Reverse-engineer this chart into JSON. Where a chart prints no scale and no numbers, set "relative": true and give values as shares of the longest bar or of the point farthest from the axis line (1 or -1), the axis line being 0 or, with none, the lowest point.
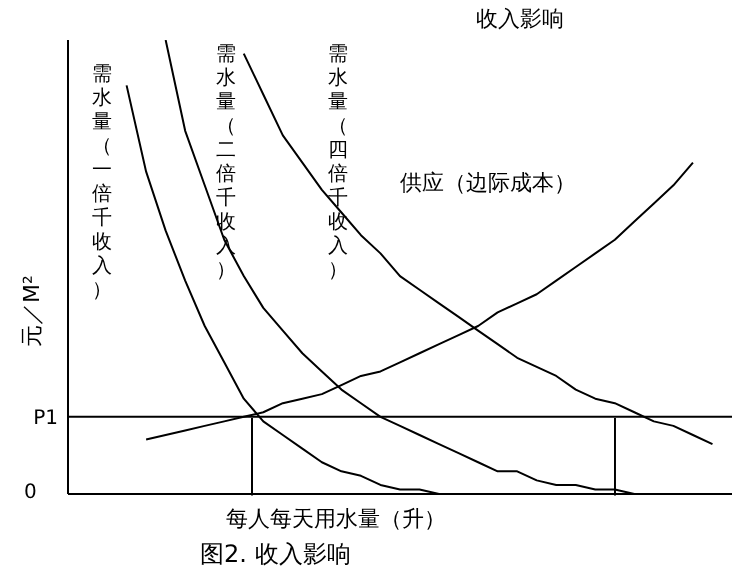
{
  "chart_data": {
    "type": "line",
    "title": "收入影响",
    "xlabel": "每人每天用水量（升）",
    "ylabel": "元／M²",
    "relative": true,
    "legend": false,
    "grid": false,
    "marker": "none",
    "line_style": "solid",
    "categories": [
      null,
      null,
      null,
      null,
      null,
      null,
      null,
      null,
      null,
      null,
      null,
      null,
      null,
      null,
      null,
      null,
      null,
      null,
      null,
      null,
      null,
      null,
      null,
      null,
      null,
      null,
      null,
      null,
      null,
      null,
      null,
      null,
      null,
      null,
      null
    ],
    "ref_lines": [
      {
        "axis": "y",
        "value": 0.17,
        "label": "P1",
        "color": "#000000"
      }
    ],
    "annotations": [
      "0",
      "图2. 收入影响"
    ],
    "series": [
      {
        "name": "需水量（一倍千收入）",
        "color": "#000000",
        "values": [
          null,
          null,
          null,
          0.9,
          0.71,
          0.58,
          0.47,
          0.37,
          0.29,
          0.21,
          0.16,
          0.13,
          0.1,
          0.07,
          0.05,
          0.04,
          0.02,
          0.01,
          0.01,
          0,
          null,
          null,
          null,
          null,
          null,
          null,
          null,
          null,
          null,
          null,
          null,
          null,
          null,
          null,
          null
        ]
      },
      {
        "name": "需水量（二倍千收入）",
        "color": "#000000",
        "values": [
          null,
          null,
          null,
          null,
          null,
          1.0,
          0.8,
          0.68,
          0.56,
          0.48,
          0.41,
          0.36,
          0.31,
          0.27,
          0.23,
          0.2,
          0.17,
          0.15,
          0.13,
          0.11,
          0.09,
          0.07,
          0.05,
          0.05,
          0.03,
          0.02,
          0.02,
          0.01,
          0.01,
          0,
          null,
          null,
          null,
          null,
          null
        ]
      },
      {
        "name": "需水量（四倍千收入）",
        "color": "#000000",
        "values": [
          null,
          null,
          null,
          null,
          null,
          null,
          null,
          null,
          null,
          0.97,
          0.88,
          0.79,
          0.73,
          0.67,
          0.62,
          0.57,
          0.53,
          0.48,
          0.45,
          0.42,
          0.39,
          0.36,
          0.33,
          0.3,
          0.28,
          0.26,
          0.23,
          0.21,
          0.2,
          0.18,
          0.16,
          0.15,
          0.13,
          0.11,
          null
        ]
      },
      {
        "name": "供应（边际成本）",
        "color": "#000000",
        "values": [
          null,
          null,
          null,
          null,
          0.12,
          0.13,
          0.14,
          0.15,
          0.16,
          0.17,
          0.18,
          0.2,
          0.21,
          0.22,
          0.24,
          0.26,
          0.27,
          0.29,
          0.31,
          0.33,
          0.35,
          0.37,
          0.4,
          0.42,
          0.44,
          0.47,
          0.5,
          0.53,
          0.56,
          0.6,
          0.64,
          0.68,
          0.73,
          null,
          null
        ]
      }
    ]
  }
}
